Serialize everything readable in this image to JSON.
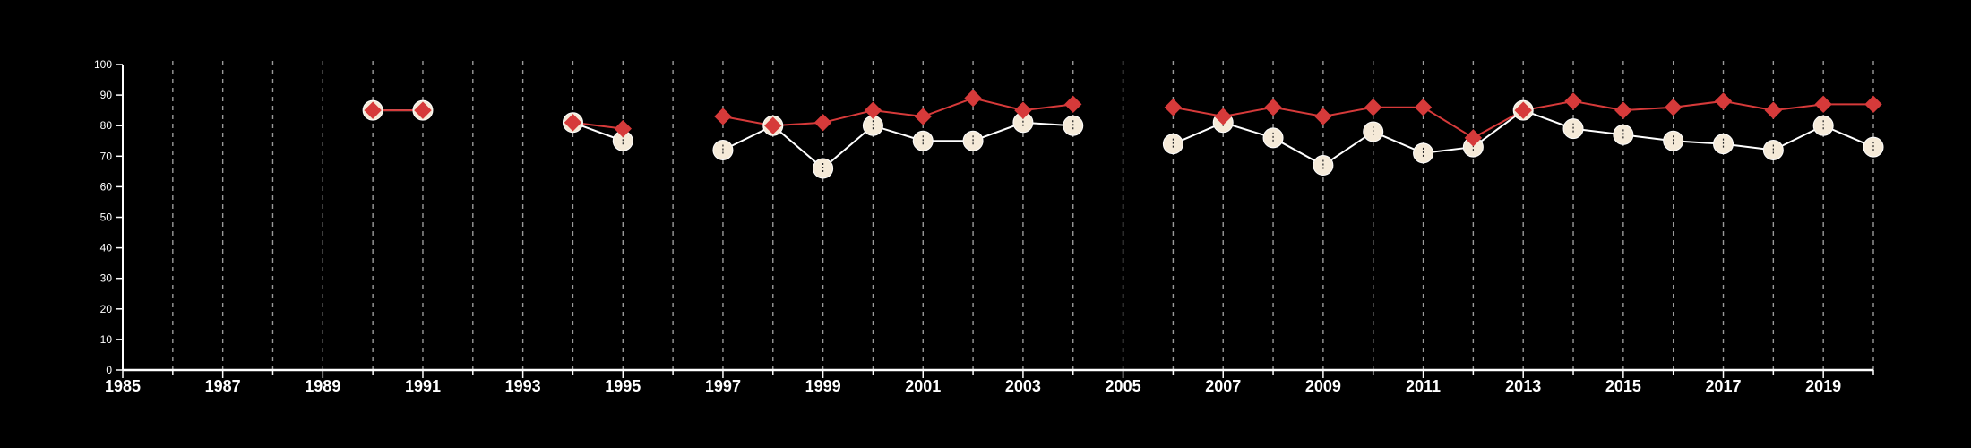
{
  "colors": {
    "background": "#000000",
    "axis": "#ffffff",
    "grid": "#9a9a9a",
    "series_a": "#d63a3a",
    "series_b": "#f5ead8",
    "series_b_line": "#ffffff"
  },
  "chart_data": {
    "type": "line",
    "title": "",
    "xlabel": "",
    "ylabel": "",
    "xlim": [
      1985,
      2020
    ],
    "ylim": [
      0,
      100
    ],
    "yticks": [
      0,
      10,
      20,
      30,
      40,
      50,
      60,
      70,
      80,
      90,
      100
    ],
    "xticks": [
      1985,
      1987,
      1989,
      1991,
      1993,
      1995,
      1997,
      1999,
      2001,
      2003,
      2005,
      2007,
      2009,
      2011,
      2013,
      2015,
      2017,
      2019
    ],
    "grid": "vertical-dashed-yearly",
    "legend": "none",
    "series": [
      {
        "marker": "diamond",
        "color": "#d63a3a",
        "points": [
          {
            "x": 1990,
            "y": 85
          },
          {
            "x": 1991,
            "y": 85
          },
          {
            "x": 1994,
            "y": 81
          },
          {
            "x": 1995,
            "y": 79
          },
          {
            "x": 1997,
            "y": 83
          },
          {
            "x": 1998,
            "y": 80
          },
          {
            "x": 1999,
            "y": 81
          },
          {
            "x": 2000,
            "y": 85
          },
          {
            "x": 2001,
            "y": 83
          },
          {
            "x": 2002,
            "y": 89
          },
          {
            "x": 2003,
            "y": 85
          },
          {
            "x": 2004,
            "y": 87
          },
          {
            "x": 2006,
            "y": 86
          },
          {
            "x": 2007,
            "y": 83
          },
          {
            "x": 2008,
            "y": 86
          },
          {
            "x": 2009,
            "y": 83
          },
          {
            "x": 2010,
            "y": 86
          },
          {
            "x": 2011,
            "y": 86
          },
          {
            "x": 2012,
            "y": 76
          },
          {
            "x": 2013,
            "y": 85
          },
          {
            "x": 2014,
            "y": 88
          },
          {
            "x": 2015,
            "y": 85
          },
          {
            "x": 2016,
            "y": 86
          },
          {
            "x": 2017,
            "y": 88
          },
          {
            "x": 2018,
            "y": 85
          },
          {
            "x": 2019,
            "y": 87
          },
          {
            "x": 2020,
            "y": 87
          }
        ]
      },
      {
        "marker": "circle",
        "color": "#f5ead8",
        "points": [
          {
            "x": 1990,
            "y": 85
          },
          {
            "x": 1991,
            "y": 85
          },
          {
            "x": 1994,
            "y": 81
          },
          {
            "x": 1995,
            "y": 75
          },
          {
            "x": 1997,
            "y": 72
          },
          {
            "x": 1998,
            "y": 80
          },
          {
            "x": 1999,
            "y": 66
          },
          {
            "x": 2000,
            "y": 80
          },
          {
            "x": 2001,
            "y": 75
          },
          {
            "x": 2002,
            "y": 75
          },
          {
            "x": 2003,
            "y": 81
          },
          {
            "x": 2004,
            "y": 80
          },
          {
            "x": 2006,
            "y": 74
          },
          {
            "x": 2007,
            "y": 81
          },
          {
            "x": 2008,
            "y": 76
          },
          {
            "x": 2009,
            "y": 67
          },
          {
            "x": 2010,
            "y": 78
          },
          {
            "x": 2011,
            "y": 71
          },
          {
            "x": 2012,
            "y": 73
          },
          {
            "x": 2013,
            "y": 85
          },
          {
            "x": 2014,
            "y": 79
          },
          {
            "x": 2015,
            "y": 77
          },
          {
            "x": 2016,
            "y": 75
          },
          {
            "x": 2017,
            "y": 74
          },
          {
            "x": 2018,
            "y": 72
          },
          {
            "x": 2019,
            "y": 80
          },
          {
            "x": 2020,
            "y": 73
          }
        ]
      }
    ]
  }
}
